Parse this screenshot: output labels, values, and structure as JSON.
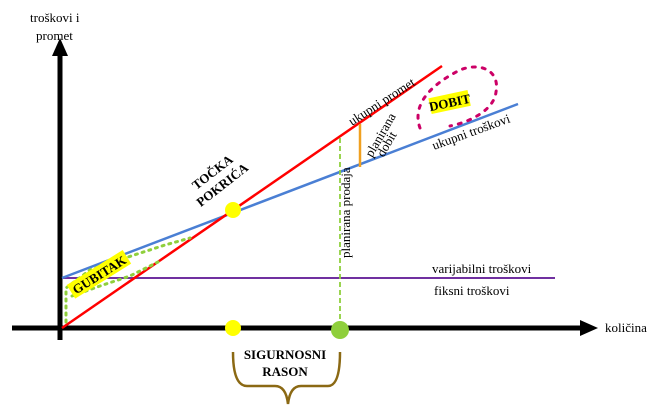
{
  "axes": {
    "y_label_line1": "troškovi i",
    "y_label_line2": "promet",
    "x_label": "količina"
  },
  "lines": {
    "total_revenue": "ukupni promet",
    "total_costs": "ukupni troškovi",
    "variable_costs": "varijabilni troškovi",
    "fixed_costs": "fiksni troškovi",
    "planned_sales": "planirana prodaja",
    "planned_profit_line1": "planirana",
    "planned_profit_line2": "dobit"
  },
  "labels": {
    "break_even_line1": "TOČKA",
    "break_even_line2": "POKRIĆA",
    "loss": "GUBITAK",
    "profit": "DOBIT",
    "safety_margin_line1": "SIGURNOSNI",
    "safety_margin_line2": "RASON"
  },
  "colors": {
    "revenue": "#ff0000",
    "costs": "#4a7fd4",
    "fixed": "#7030a0",
    "planned_sales": "#8fcf3c",
    "planned_profit": "#f0a020",
    "break_even_point": "#ffff00",
    "loss_dots": "#8fcf3c",
    "profit_dots": "#cc0066",
    "bracket": "#8b6914",
    "highlight": "#ffff00"
  }
}
